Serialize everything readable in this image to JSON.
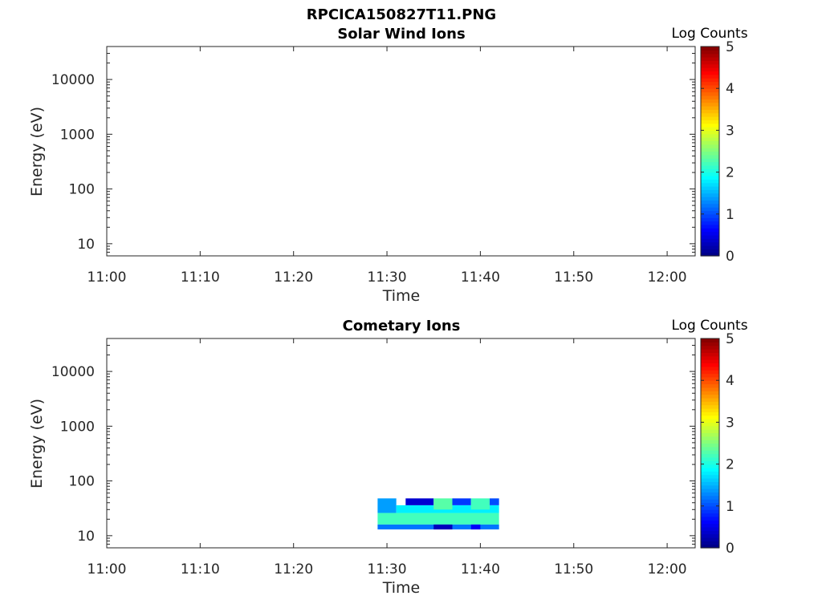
{
  "figure_title": "RPCICA150827T11.PNG",
  "chart_data": [
    {
      "type": "heatmap",
      "title": "Solar Wind Ions",
      "xlabel": "Time",
      "ylabel": "Energy (eV)",
      "xlim": [
        "11:00",
        "12:03"
      ],
      "x_ticks": [
        "11:00",
        "11:10",
        "11:20",
        "11:30",
        "11:40",
        "11:50",
        "12:00"
      ],
      "ylim": [
        6,
        40000
      ],
      "yscale": "log",
      "y_ticks": [
        {
          "value": 10,
          "label": "10"
        },
        {
          "value": 100,
          "label": "100"
        },
        {
          "value": 1000,
          "label": "1000"
        },
        {
          "value": 10000,
          "label": "10000"
        }
      ],
      "colorbar": {
        "label": "Log Counts",
        "min": 0,
        "max": 5,
        "ticks": [
          "0",
          "1",
          "2",
          "3",
          "4",
          "5"
        ],
        "colormap": "jet"
      },
      "cells": []
    },
    {
      "type": "heatmap",
      "title": "Cometary Ions",
      "xlabel": "Time",
      "ylabel": "Energy (eV)",
      "xlim": [
        "11:00",
        "12:03"
      ],
      "x_ticks": [
        "11:00",
        "11:10",
        "11:20",
        "11:30",
        "11:40",
        "11:50",
        "12:00"
      ],
      "ylim": [
        6,
        40000
      ],
      "yscale": "log",
      "y_ticks": [
        {
          "value": 10,
          "label": "10"
        },
        {
          "value": 100,
          "label": "100"
        },
        {
          "value": 1000,
          "label": "1000"
        },
        {
          "value": 10000,
          "label": "10000"
        }
      ],
      "colorbar": {
        "label": "Log Counts",
        "min": 0,
        "max": 5,
        "ticks": [
          "0",
          "1",
          "2",
          "3",
          "4",
          "5"
        ],
        "colormap": "jet"
      },
      "cells": [
        {
          "t0": "11:29",
          "t1": "11:42",
          "e0": 13,
          "e1": 16,
          "value": 1.2
        },
        {
          "t0": "11:29",
          "t1": "11:42",
          "e0": 16,
          "e1": 26,
          "value": 2.2
        },
        {
          "t0": "11:29",
          "t1": "11:31",
          "e0": 26,
          "e1": 48,
          "value": 1.4
        },
        {
          "t0": "11:31",
          "t1": "11:42",
          "e0": 26,
          "e1": 36,
          "value": 1.8
        },
        {
          "t0": "11:32",
          "t1": "11:35",
          "e0": 36,
          "e1": 48,
          "value": 0.4
        },
        {
          "t0": "11:35",
          "t1": "11:37",
          "e0": 30,
          "e1": 48,
          "value": 2.3
        },
        {
          "t0": "11:37",
          "t1": "11:39",
          "e0": 36,
          "e1": 48,
          "value": 0.9
        },
        {
          "t0": "11:39",
          "t1": "11:41",
          "e0": 30,
          "e1": 48,
          "value": 2.2
        },
        {
          "t0": "11:41",
          "t1": "11:42",
          "e0": 36,
          "e1": 48,
          "value": 1.0
        },
        {
          "t0": "11:35",
          "t1": "11:37",
          "e0": 13,
          "e1": 16,
          "value": 0.3
        },
        {
          "t0": "11:39",
          "t1": "11:40",
          "e0": 13,
          "e1": 16,
          "value": 0.6
        }
      ]
    }
  ]
}
